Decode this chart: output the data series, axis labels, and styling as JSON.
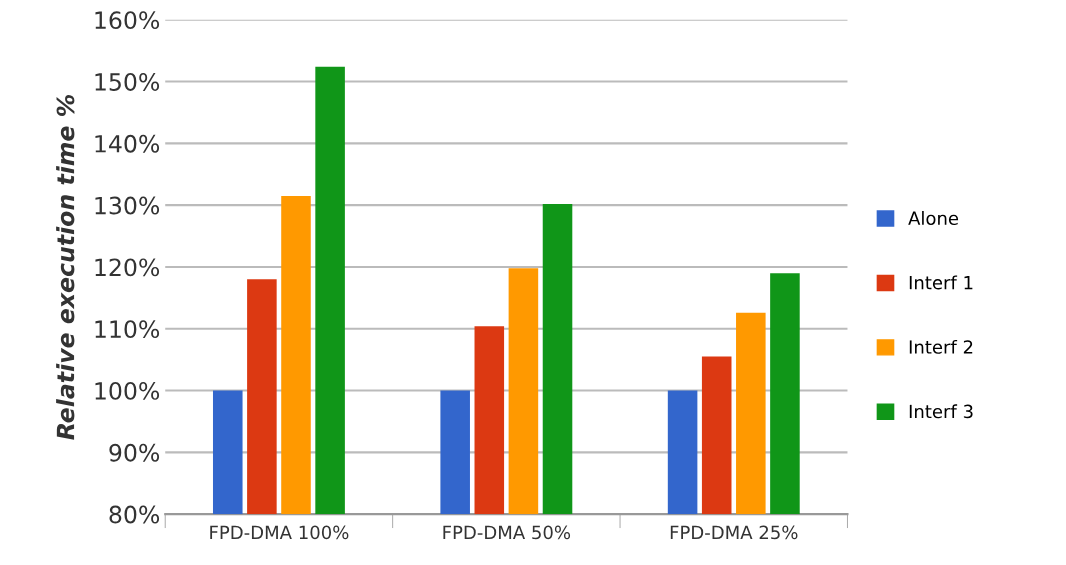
{
  "chart_data": {
    "type": "bar",
    "ylabel": "Relative execution time %",
    "categories": [
      "FPD-DMA 100%",
      "FPD-DMA 50%",
      "FPD-DMA 25%"
    ],
    "series": [
      {
        "name": "Alone",
        "color": "#3366cc",
        "values": [
          100,
          100,
          100
        ]
      },
      {
        "name": "Interf 1",
        "color": "#dc3912",
        "values": [
          118,
          110.4,
          105.5
        ]
      },
      {
        "name": "Interf 2",
        "color": "#ff9900",
        "values": [
          131.5,
          119.8,
          112.6
        ]
      },
      {
        "name": "Interf 3",
        "color": "#109618",
        "values": [
          152.4,
          130.2,
          119
        ]
      }
    ],
    "ylim": [
      80,
      160
    ],
    "yticks": [
      {
        "value": 80,
        "label": "80%"
      },
      {
        "value": 90,
        "label": "90%"
      },
      {
        "value": 100,
        "label": "100%"
      },
      {
        "value": 110,
        "label": "110%"
      },
      {
        "value": 120,
        "label": "120%"
      },
      {
        "value": 130,
        "label": "130%"
      },
      {
        "value": 140,
        "label": "140%"
      },
      {
        "value": 150,
        "label": "150%"
      },
      {
        "value": 160,
        "label": "160%"
      }
    ],
    "grid": "y",
    "legend": "right"
  }
}
